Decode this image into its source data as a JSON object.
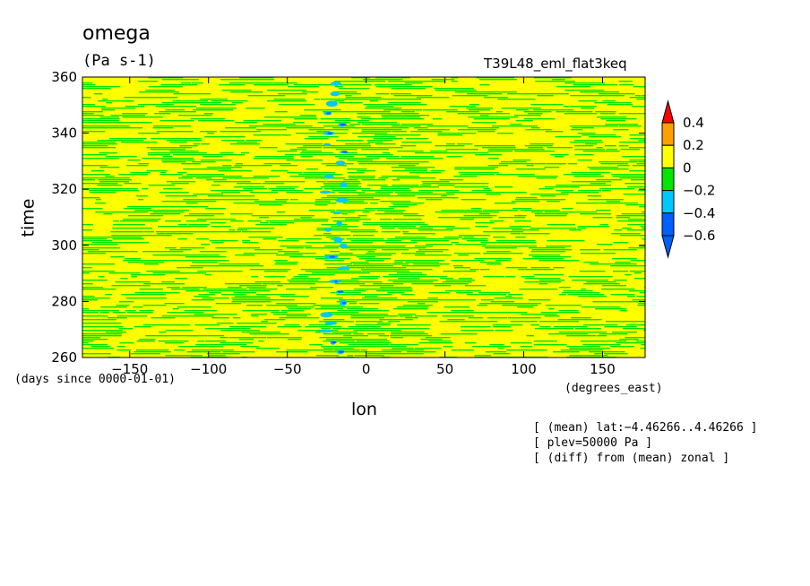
{
  "chart_data": {
    "type": "heatmap",
    "title": "omega",
    "units": "(Pa s-1)",
    "experiment": "T39L48_eml_flat3keq",
    "xlabel": "lon",
    "xunits": "(degrees_east)",
    "ylabel": "time",
    "yunits": "(days since 0000-01-01)",
    "xlim": [
      -180,
      177
    ],
    "ylim": [
      260,
      360
    ],
    "xticks": [
      -150,
      -100,
      -50,
      0,
      50,
      100,
      150
    ],
    "xtick_labels": [
      "−150",
      "−100",
      "−50",
      "0",
      "50",
      "100",
      "150"
    ],
    "yticks": [
      260,
      280,
      300,
      320,
      340,
      360
    ],
    "ytick_labels": [
      "260",
      "280",
      "300",
      "320",
      "340",
      "360"
    ],
    "colorbar": {
      "levels": [
        -0.6,
        -0.4,
        -0.2,
        0,
        0.2,
        0.4
      ],
      "labels": [
        "−0.6",
        "−0.4",
        "−0.2",
        "0",
        "0.2",
        "0.4"
      ],
      "colors": [
        "#0060ff",
        "#00c8ff",
        "#00e600",
        "#ffff00",
        "#ffa000",
        "#ff0000"
      ],
      "below_color": "#0060ff",
      "above_color": "#ff0000"
    },
    "field": {
      "description_values": "omega anomaly from zonal mean",
      "active_center_lon": -20,
      "active_region_lon": [
        -30,
        30
      ]
    },
    "annotations": [
      "[ (mean) lat:−4.46266..4.46266 ]",
      "[ plev=50000 Pa ]",
      "[ (diff) from (mean) zonal ]"
    ]
  }
}
